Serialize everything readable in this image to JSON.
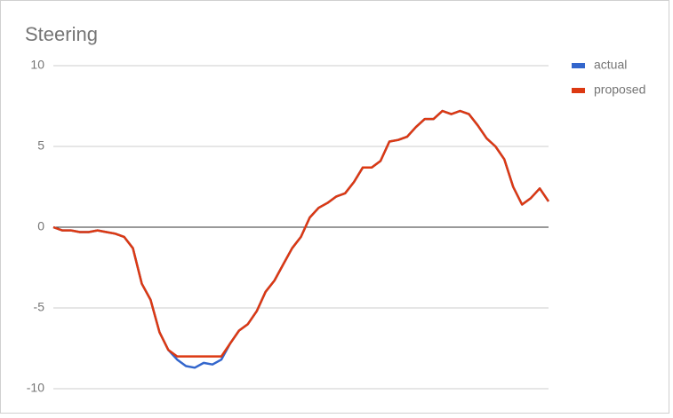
{
  "chart_data": {
    "type": "line",
    "title": "Steering",
    "series": [
      {
        "name": "actual",
        "color": "#3366cc",
        "values": [
          0,
          -0.2,
          -0.2,
          -0.3,
          -0.3,
          -0.2,
          -0.3,
          -0.4,
          -0.6,
          -1.3,
          -3.5,
          -4.5,
          -6.5,
          -7.6,
          -8.2,
          -8.6,
          -8.7,
          -8.4,
          -8.5,
          -8.2,
          -7.2,
          -6.4,
          -6.0,
          -5.2,
          -4.0,
          -3.3,
          -2.3,
          -1.3,
          -0.6,
          0.6,
          1.2,
          1.5,
          1.9,
          2.1,
          2.8,
          3.7,
          3.7,
          4.1,
          5.3,
          5.4,
          5.6,
          6.2,
          6.7,
          6.7,
          7.2,
          7.0,
          7.2,
          7.0,
          6.3,
          5.5,
          5.0,
          4.2,
          2.5,
          1.4,
          1.8,
          2.4,
          1.6
        ]
      },
      {
        "name": "proposed",
        "color": "#dc3912",
        "values": [
          0,
          -0.2,
          -0.2,
          -0.3,
          -0.3,
          -0.2,
          -0.3,
          -0.4,
          -0.6,
          -1.3,
          -3.5,
          -4.5,
          -6.5,
          -7.6,
          -8.0,
          -8.0,
          -8.0,
          -8.0,
          -8.0,
          -8.0,
          -7.2,
          -6.4,
          -6.0,
          -5.2,
          -4.0,
          -3.3,
          -2.3,
          -1.3,
          -0.6,
          0.6,
          1.2,
          1.5,
          1.9,
          2.1,
          2.8,
          3.7,
          3.7,
          4.1,
          5.3,
          5.4,
          5.6,
          6.2,
          6.7,
          6.7,
          7.2,
          7.0,
          7.2,
          7.0,
          6.3,
          5.5,
          5.0,
          4.2,
          2.5,
          1.4,
          1.8,
          2.4,
          1.6
        ]
      }
    ],
    "ylim": [
      -10,
      10
    ],
    "yticks": [
      -10,
      -5,
      0,
      5,
      10
    ],
    "grid": true,
    "legend": "right"
  }
}
